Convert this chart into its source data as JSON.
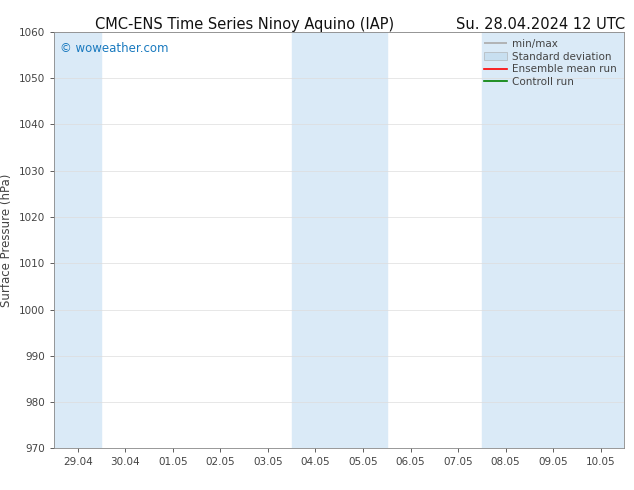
{
  "title_left": "CMC-ENS Time Series Ninoy Aquino (IAP)",
  "title_right": "Su. 28.04.2024 12 UTC",
  "ylabel": "Surface Pressure (hPa)",
  "ylim": [
    970,
    1060
  ],
  "yticks": [
    970,
    980,
    990,
    1000,
    1010,
    1020,
    1030,
    1040,
    1050,
    1060
  ],
  "xtick_labels": [
    "29.04",
    "30.04",
    "01.05",
    "02.05",
    "03.05",
    "04.05",
    "05.05",
    "06.05",
    "07.05",
    "08.05",
    "09.05",
    "10.05"
  ],
  "xtick_positions": [
    0,
    1,
    2,
    3,
    4,
    5,
    6,
    7,
    8,
    9,
    10,
    11
  ],
  "xlim": [
    -0.5,
    11.5
  ],
  "shaded_bands": [
    {
      "x_start": -0.5,
      "x_end": 0.5,
      "color": "#daeaf7"
    },
    {
      "x_start": 4.5,
      "x_end": 6.5,
      "color": "#daeaf7"
    },
    {
      "x_start": 8.5,
      "x_end": 11.5,
      "color": "#daeaf7"
    }
  ],
  "watermark": "© woweather.com",
  "watermark_color": "#1a7abf",
  "background_color": "#ffffff",
  "plot_bg_color": "#ffffff",
  "legend_items": [
    {
      "label": "min/max",
      "color": "#aaaaaa",
      "lw": 1.2,
      "ls": "-",
      "type": "minmax"
    },
    {
      "label": "Standard deviation",
      "color": "#c8dff0",
      "lw": 7,
      "ls": "-",
      "type": "bar"
    },
    {
      "label": "Ensemble mean run",
      "color": "#ff0000",
      "lw": 1.2,
      "ls": "-",
      "type": "line"
    },
    {
      "label": "Controll run",
      "color": "#008000",
      "lw": 1.2,
      "ls": "-",
      "type": "line"
    }
  ],
  "title_fontsize": 10.5,
  "ylabel_fontsize": 8.5,
  "tick_fontsize": 7.5,
  "legend_fontsize": 7.5,
  "watermark_fontsize": 8.5,
  "grid_color": "#dddddd",
  "spine_color": "#888888",
  "tick_color": "#444444"
}
